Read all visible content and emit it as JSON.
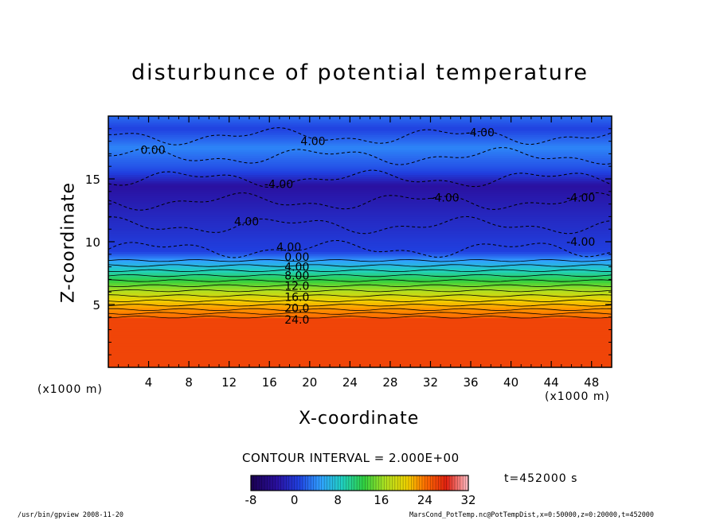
{
  "chart_data": {
    "type": "heatmap",
    "title": "disturbunce of potential temperature",
    "xlabel": "X-coordinate",
    "ylabel": "Z-coordinate",
    "x_unit": "(x1000 m)",
    "z_unit": "(x1000 m)",
    "xlim": [
      0,
      50
    ],
    "ylim": [
      0,
      20
    ],
    "x_ticks": [
      "4",
      "8",
      "12",
      "16",
      "20",
      "24",
      "28",
      "32",
      "36",
      "40",
      "44",
      "48"
    ],
    "y_ticks": [
      "5",
      "10",
      "15"
    ],
    "contour_interval": "CONTOUR INTERVAL = 2.000E+00",
    "contour_labels": [
      "-4.00",
      "0.00",
      "4.00",
      "8.00",
      "12.0",
      "16.0",
      "20.0",
      "24.0"
    ],
    "time": "t=452000 s",
    "colorbar": {
      "min": -8,
      "max": 32,
      "ticks": [
        "-8",
        "0",
        "8",
        "16",
        "24",
        "32"
      ]
    },
    "profile": [
      {
        "z": 0,
        "value": 26
      },
      {
        "z": 3.9,
        "value": 26
      },
      {
        "z": 4.0,
        "value": 24
      },
      {
        "z": 4.6,
        "value": 20
      },
      {
        "z": 5.3,
        "value": 16
      },
      {
        "z": 6.1,
        "value": 12
      },
      {
        "z": 6.9,
        "value": 8
      },
      {
        "z": 7.7,
        "value": 4
      },
      {
        "z": 8.5,
        "value": 0
      },
      {
        "z": 9.2,
        "value": -4
      },
      {
        "z": 12.0,
        "value": -5
      },
      {
        "z": 14.5,
        "value": -6
      },
      {
        "z": 16.0,
        "value": -3
      },
      {
        "z": 17.5,
        "value": -1
      },
      {
        "z": 19.0,
        "value": -4
      },
      {
        "z": 20.0,
        "value": -2
      }
    ]
  },
  "footer": {
    "left": "/usr/bin/gpview   2008-11-20",
    "right": "MarsCond_PotTemp.nc@PotTempDist,x=0:50000,z=0:20000,t=452000"
  },
  "colors": {
    "background": "#ffffff",
    "axis": "#000000"
  }
}
